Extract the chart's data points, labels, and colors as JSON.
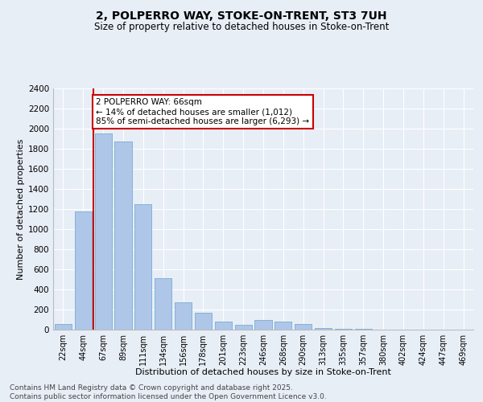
{
  "title_line1": "2, POLPERRO WAY, STOKE-ON-TRENT, ST3 7UH",
  "title_line2": "Size of property relative to detached houses in Stoke-on-Trent",
  "xlabel": "Distribution of detached houses by size in Stoke-on-Trent",
  "ylabel": "Number of detached properties",
  "categories": [
    "22sqm",
    "44sqm",
    "67sqm",
    "89sqm",
    "111sqm",
    "134sqm",
    "156sqm",
    "178sqm",
    "201sqm",
    "223sqm",
    "246sqm",
    "268sqm",
    "290sqm",
    "313sqm",
    "335sqm",
    "357sqm",
    "380sqm",
    "402sqm",
    "424sqm",
    "447sqm",
    "469sqm"
  ],
  "values": [
    60,
    1180,
    1950,
    1870,
    1250,
    510,
    270,
    170,
    80,
    50,
    100,
    80,
    60,
    20,
    10,
    5,
    2,
    2,
    0,
    2,
    0
  ],
  "bar_color": "#aec6e8",
  "bar_edge_color": "#7aafd4",
  "background_color": "#e8eef6",
  "grid_color": "#ffffff",
  "vline_color": "#cc0000",
  "annotation_text": "2 POLPERRO WAY: 66sqm\n← 14% of detached houses are smaller (1,012)\n85% of semi-detached houses are larger (6,293) →",
  "annotation_box_color": "#ffffff",
  "annotation_box_edge_color": "#cc0000",
  "footer_line1": "Contains HM Land Registry data © Crown copyright and database right 2025.",
  "footer_line2": "Contains public sector information licensed under the Open Government Licence v3.0.",
  "ylim": [
    0,
    2400
  ],
  "yticks": [
    0,
    200,
    400,
    600,
    800,
    1000,
    1200,
    1400,
    1600,
    1800,
    2000,
    2200,
    2400
  ]
}
